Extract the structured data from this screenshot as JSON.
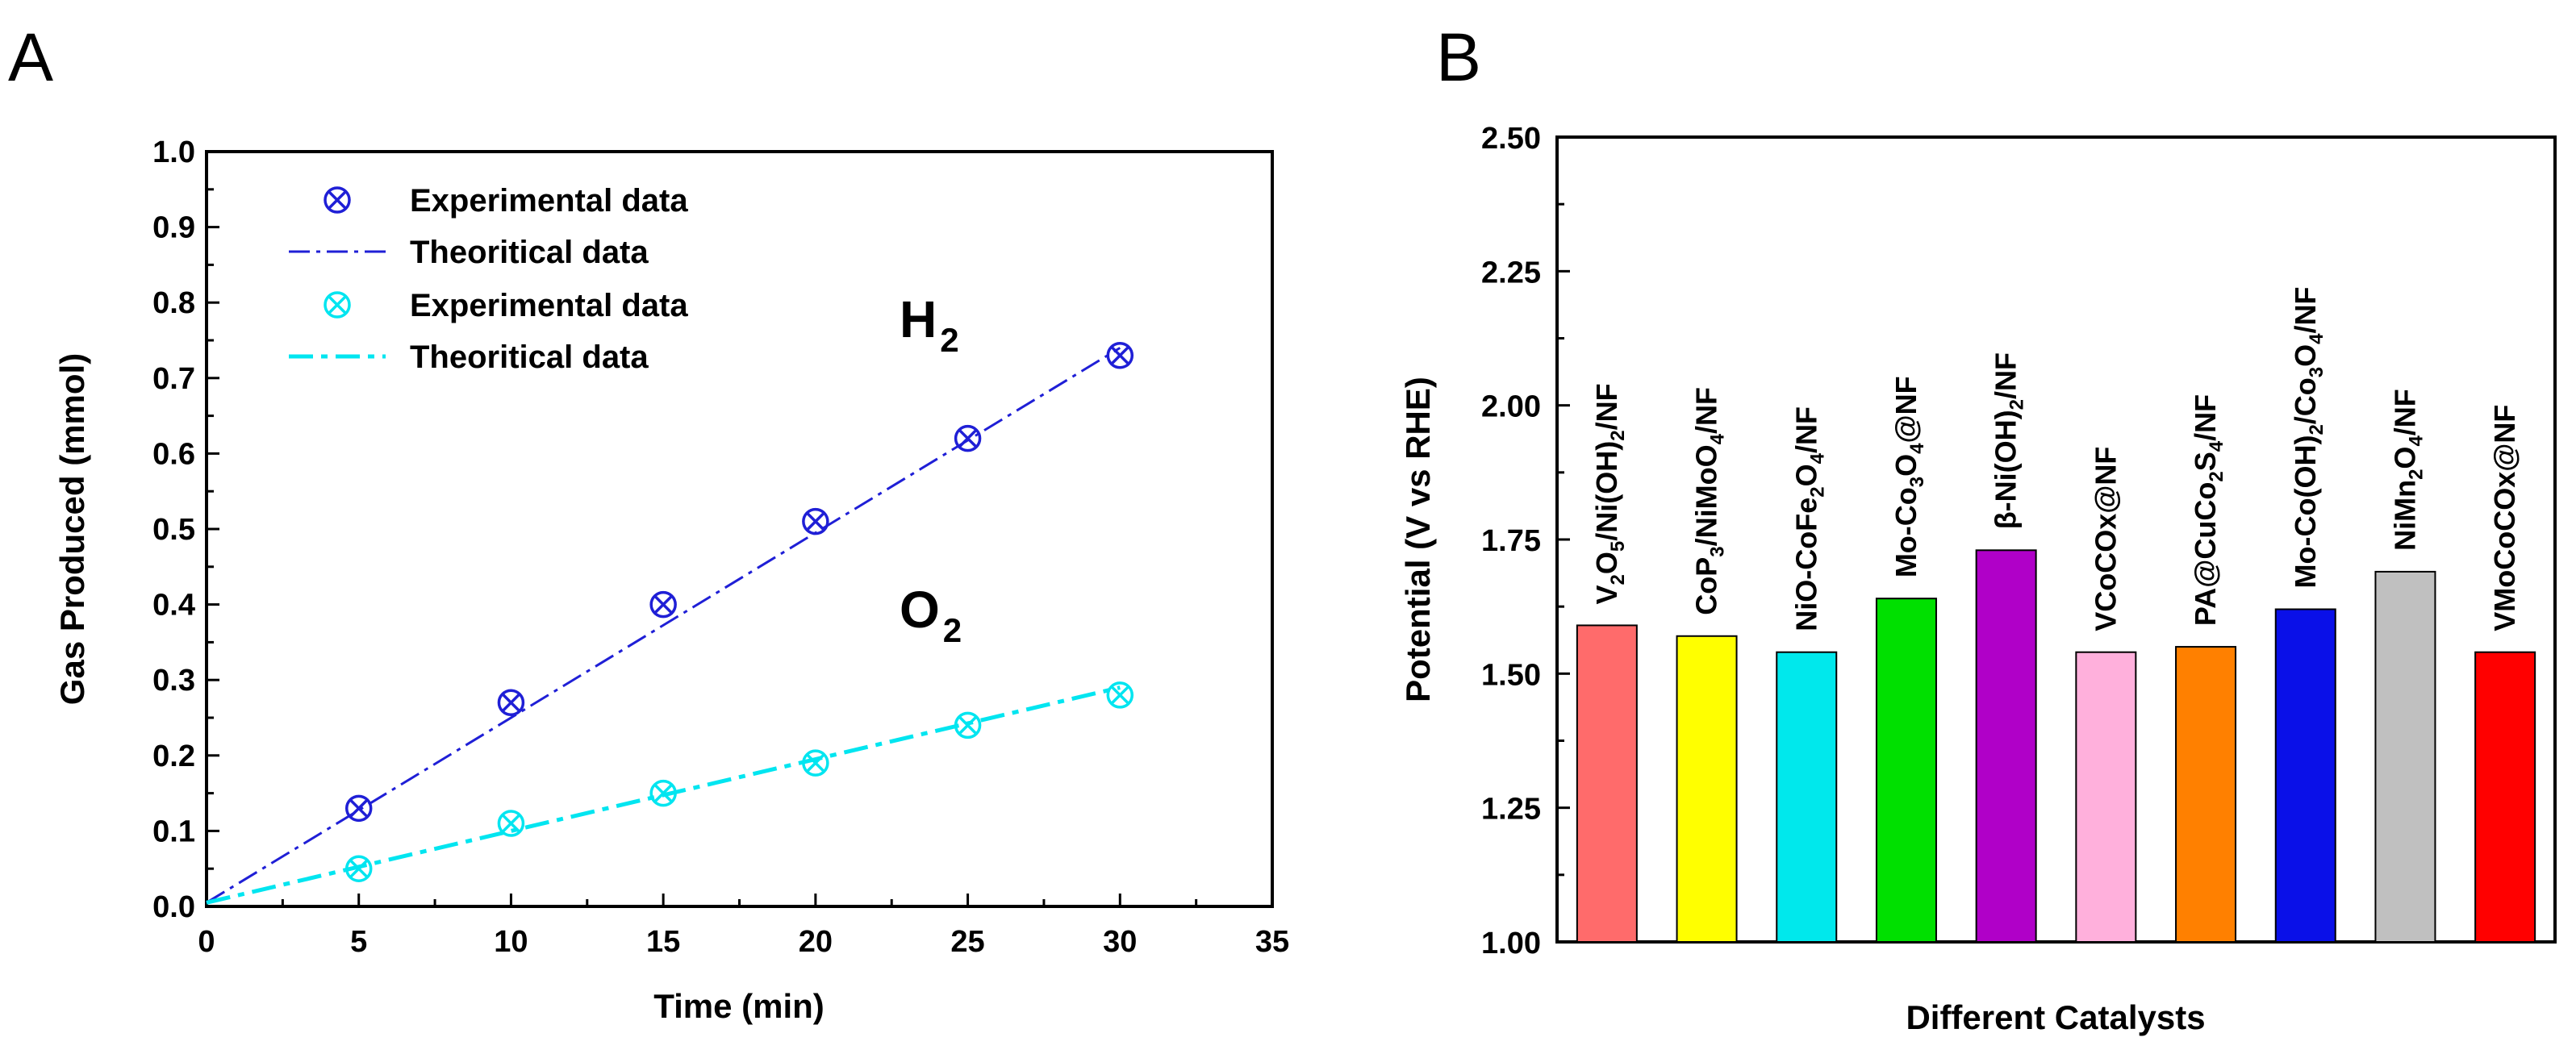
{
  "chart_data": [
    {
      "panel": "A",
      "type": "line",
      "xlabel": "Time (min)",
      "ylabel": "Gas Produced (mmol)",
      "xlim": [
        0,
        35
      ],
      "ylim": [
        0,
        1.0
      ],
      "xticks": [
        "0",
        "5",
        "10",
        "15",
        "20",
        "25",
        "30",
        "35"
      ],
      "yticks": [
        "0.0",
        "0.1",
        "0.2",
        "0.3",
        "0.4",
        "0.5",
        "0.6",
        "0.7",
        "0.8",
        "0.9",
        "1.0"
      ],
      "legend": [
        {
          "label": "Experimental data",
          "kind": "marker",
          "series": "H2"
        },
        {
          "label": "Theoritical data",
          "kind": "line",
          "series": "H2"
        },
        {
          "label": "Experimental data",
          "kind": "marker",
          "series": "O2"
        },
        {
          "label": "Theoritical data",
          "kind": "line",
          "series": "O2"
        }
      ],
      "series": [
        {
          "name": "H2",
          "label_main": "H",
          "label_sub": "2",
          "color": "#1f1fd6",
          "experimental": {
            "x": [
              5,
              10,
              15,
              20,
              25,
              30
            ],
            "y": [
              0.13,
              0.27,
              0.4,
              0.51,
              0.62,
              0.73
            ]
          },
          "theoretical": {
            "x": [
              0,
              30
            ],
            "y": [
              0.005,
              0.74
            ]
          }
        },
        {
          "name": "O2",
          "label_main": "O",
          "label_sub": "2",
          "color": "#00e5f0",
          "experimental": {
            "x": [
              5,
              10,
              15,
              20,
              25,
              30
            ],
            "y": [
              0.05,
              0.11,
              0.15,
              0.19,
              0.24,
              0.28
            ]
          },
          "theoretical": {
            "x": [
              0,
              30
            ],
            "y": [
              0.005,
              0.29
            ]
          }
        }
      ]
    },
    {
      "panel": "B",
      "type": "bar",
      "xlabel": "Different Catalysts",
      "ylabel": "Potential (V vs RHE)",
      "ylim": [
        1.0,
        2.5
      ],
      "yticks": [
        "1.00",
        "1.25",
        "1.50",
        "1.75",
        "2.00",
        "2.25",
        "2.50"
      ],
      "categories": [
        [
          {
            "t": "V"
          },
          {
            "t": "2",
            "s": 1
          },
          {
            "t": "O"
          },
          {
            "t": "5",
            "s": 1
          },
          {
            "t": "/Ni(OH)"
          },
          {
            "t": "2",
            "s": 1
          },
          {
            "t": "/NF"
          }
        ],
        [
          {
            "t": "CoP"
          },
          {
            "t": "3",
            "s": 1
          },
          {
            "t": "/NiMoO"
          },
          {
            "t": "4",
            "s": 1
          },
          {
            "t": "/NF"
          }
        ],
        [
          {
            "t": "NiO-CoFe"
          },
          {
            "t": "2",
            "s": 1
          },
          {
            "t": "O"
          },
          {
            "t": "4",
            "s": 1
          },
          {
            "t": "/NF"
          }
        ],
        [
          {
            "t": "Mo-Co"
          },
          {
            "t": "3",
            "s": 1
          },
          {
            "t": "O"
          },
          {
            "t": "4",
            "s": 1
          },
          {
            "t": "@NF"
          }
        ],
        [
          {
            "t": "β-Ni(OH)"
          },
          {
            "t": "2",
            "s": 1
          },
          {
            "t": "/NF"
          }
        ],
        [
          {
            "t": "VCoCOx@NF"
          }
        ],
        [
          {
            "t": "PA@CuCo"
          },
          {
            "t": "2",
            "s": 1
          },
          {
            "t": "S"
          },
          {
            "t": "4",
            "s": 1
          },
          {
            "t": "/NF"
          }
        ],
        [
          {
            "t": "Mo-Co(OH)"
          },
          {
            "t": "2",
            "s": 1
          },
          {
            "t": "/Co"
          },
          {
            "t": "3",
            "s": 1
          },
          {
            "t": "O"
          },
          {
            "t": "4",
            "s": 1
          },
          {
            "t": "/NF"
          }
        ],
        [
          {
            "t": "NiMn"
          },
          {
            "t": "2",
            "s": 1
          },
          {
            "t": "O"
          },
          {
            "t": "4",
            "s": 1
          },
          {
            "t": "/NF"
          }
        ],
        [
          {
            "t": "VMoCoCOx@NF"
          }
        ]
      ],
      "values": [
        1.59,
        1.57,
        1.54,
        1.64,
        1.73,
        1.54,
        1.55,
        1.62,
        1.69,
        1.54
      ],
      "colors": [
        "#ff6b6b",
        "#ffff00",
        "#00e8ec",
        "#00e000",
        "#b000c8",
        "#ffb0dc",
        "#ff8000",
        "#0a10e8",
        "#c0c0c0",
        "#ff0000"
      ]
    }
  ]
}
